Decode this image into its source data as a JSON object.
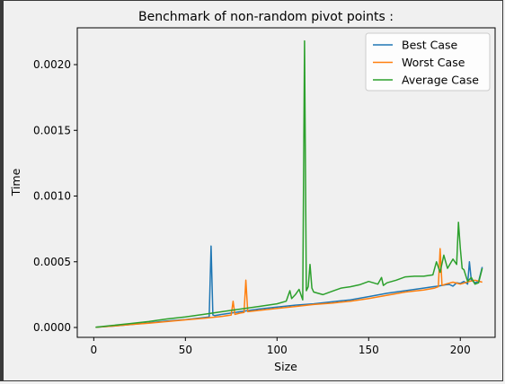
{
  "chart_data": {
    "type": "line",
    "title": "Benchmark of non-random pivot points :",
    "xlabel": "Size",
    "ylabel": "Time",
    "xlim": [
      -9,
      219
    ],
    "ylim": [
      -7.5e-05,
      0.00228
    ],
    "xticks": [
      0,
      50,
      100,
      150,
      200
    ],
    "yticks": [
      0.0,
      0.0005,
      0.001,
      0.0015,
      0.002
    ],
    "ytick_labels": [
      "0.0000",
      "0.0005",
      "0.0010",
      "0.0015",
      "0.0020"
    ],
    "legend_position": "top-right",
    "series": [
      {
        "name": "Best Case",
        "color": "#1f77b4",
        "x": [
          1,
          10,
          20,
          30,
          40,
          50,
          60,
          63,
          64,
          65,
          66,
          70,
          80,
          90,
          100,
          110,
          120,
          130,
          140,
          150,
          160,
          170,
          180,
          185,
          188,
          190,
          192,
          194,
          196,
          198,
          200,
          202,
          204,
          205,
          206,
          208,
          210,
          212
        ],
        "y": [
          2e-06,
          1e-05,
          2.2e-05,
          3.5e-05,
          5e-05,
          6e-05,
          7.5e-05,
          8e-05,
          0.00062,
          9.5e-05,
          9e-05,
          0.0001,
          0.00012,
          0.00014,
          0.000155,
          0.00017,
          0.00018,
          0.000195,
          0.00021,
          0.000235,
          0.00026,
          0.00028,
          0.0003,
          0.00031,
          0.000315,
          0.00032,
          0.000325,
          0.000328,
          0.000315,
          0.00034,
          0.000335,
          0.00035,
          0.00033,
          0.0005,
          0.00036,
          0.00034,
          0.00035,
          0.00046
        ]
      },
      {
        "name": "Worst Case",
        "color": "#ff7f0e",
        "x": [
          1,
          10,
          20,
          30,
          40,
          50,
          60,
          70,
          75,
          76,
          77,
          80,
          82,
          83,
          84,
          90,
          100,
          110,
          120,
          130,
          140,
          150,
          160,
          170,
          180,
          186,
          188,
          189,
          190,
          192,
          196,
          200,
          205,
          208,
          212
        ],
        "y": [
          2e-06,
          1e-05,
          2.2e-05,
          3.2e-05,
          4.5e-05,
          5.8e-05,
          7e-05,
          8.5e-05,
          9.5e-05,
          0.0002,
          0.0001,
          0.00011,
          0.000115,
          0.00036,
          0.00012,
          0.00013,
          0.000145,
          0.00016,
          0.000175,
          0.000185,
          0.0002,
          0.00022,
          0.000245,
          0.00027,
          0.000285,
          0.0003,
          0.00031,
          0.0006,
          0.00032,
          0.00033,
          0.000345,
          0.00033,
          0.00035,
          0.00036,
          0.000345
        ]
      },
      {
        "name": "Average Case",
        "color": "#2ca02c",
        "x": [
          1,
          10,
          20,
          30,
          40,
          50,
          60,
          70,
          80,
          90,
          100,
          105,
          107,
          108,
          110,
          112,
          114,
          115,
          116,
          117,
          118,
          119,
          120,
          125,
          130,
          135,
          140,
          145,
          150,
          155,
          157,
          158,
          160,
          165,
          170,
          175,
          180,
          185,
          187,
          189,
          191,
          193,
          196,
          198,
          199,
          200,
          201,
          202,
          204,
          206,
          208,
          210,
          212
        ],
        "y": [
          2e-06,
          1.5e-05,
          3e-05,
          4.5e-05,
          6.5e-05,
          8e-05,
          0.0001,
          0.00012,
          0.00014,
          0.00016,
          0.00018,
          0.0002,
          0.00028,
          0.00022,
          0.00025,
          0.00029,
          0.00021,
          0.00218,
          0.00028,
          0.00031,
          0.00048,
          0.0003,
          0.00027,
          0.00025,
          0.000275,
          0.0003,
          0.00031,
          0.000325,
          0.00035,
          0.00033,
          0.00038,
          0.00032,
          0.00034,
          0.00036,
          0.000385,
          0.00039,
          0.00039,
          0.0004,
          0.0005,
          0.00042,
          0.00055,
          0.00045,
          0.00052,
          0.00048,
          0.0008,
          0.0006,
          0.00045,
          0.00044,
          0.00035,
          0.00038,
          0.00033,
          0.00034,
          0.00045
        ]
      }
    ]
  }
}
